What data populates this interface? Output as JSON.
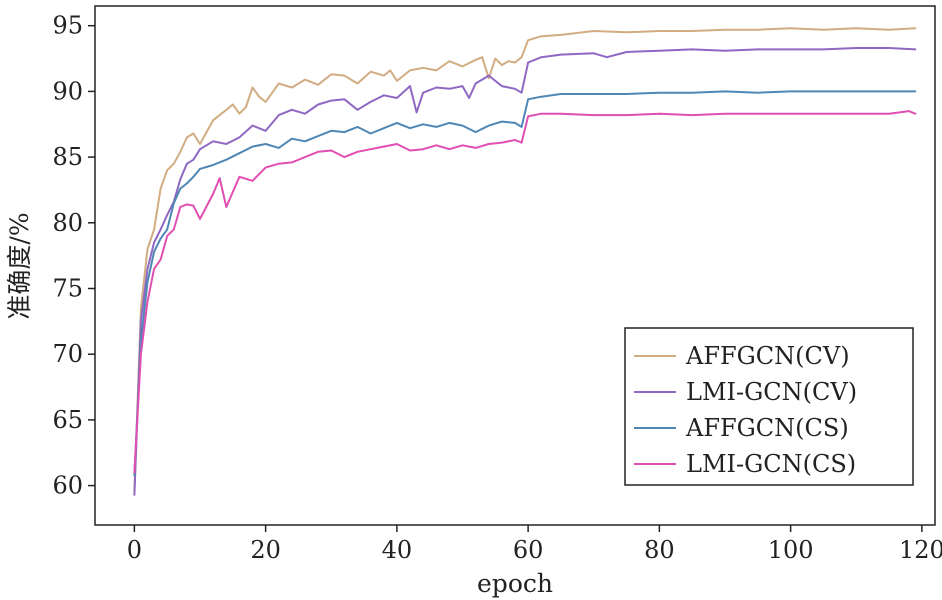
{
  "chart_data": {
    "type": "line",
    "xlabel": "epoch",
    "ylabel": "准确度/%",
    "xlim": [
      -6,
      122
    ],
    "ylim": [
      57,
      96.5
    ],
    "xticks": [
      0,
      20,
      40,
      60,
      80,
      100,
      120
    ],
    "yticks": [
      60,
      65,
      70,
      75,
      80,
      85,
      90,
      95
    ],
    "legend_position": "lower-right",
    "grid": false,
    "series": [
      {
        "name": "AFFGCN(CV)",
        "color": "#d2ac82",
        "x": [
          0,
          1,
          2,
          3,
          4,
          5,
          6,
          7,
          8,
          9,
          10,
          12,
          14,
          15,
          16,
          17,
          18,
          19,
          20,
          22,
          24,
          26,
          28,
          30,
          32,
          34,
          36,
          38,
          39,
          40,
          42,
          44,
          46,
          48,
          50,
          52,
          53,
          54,
          55,
          56,
          57,
          58,
          59,
          60,
          62,
          65,
          70,
          75,
          80,
          85,
          90,
          95,
          100,
          105,
          110,
          115,
          119
        ],
        "values": [
          59.5,
          73.5,
          78.0,
          79.5,
          82.6,
          84.0,
          84.5,
          85.4,
          86.5,
          86.8,
          86.0,
          87.8,
          88.6,
          89.0,
          88.3,
          88.8,
          90.3,
          89.6,
          89.2,
          90.6,
          90.3,
          90.9,
          90.5,
          91.3,
          91.2,
          90.6,
          91.5,
          91.2,
          91.6,
          90.8,
          91.6,
          91.8,
          91.6,
          92.3,
          91.9,
          92.4,
          92.6,
          91.0,
          92.5,
          92.0,
          92.3,
          92.2,
          92.6,
          93.9,
          94.2,
          94.3,
          94.6,
          94.5,
          94.6,
          94.6,
          94.7,
          94.7,
          94.8,
          94.7,
          94.8,
          94.7,
          94.8
        ]
      },
      {
        "name": "LMI-GCN(CV)",
        "color": "#8e68c2",
        "x": [
          0,
          1,
          2,
          3,
          4,
          5,
          6,
          7,
          8,
          9,
          10,
          12,
          14,
          16,
          18,
          20,
          22,
          24,
          26,
          28,
          30,
          32,
          34,
          36,
          38,
          40,
          42,
          43,
          44,
          46,
          48,
          50,
          51,
          52,
          54,
          56,
          58,
          59,
          60,
          62,
          65,
          70,
          72,
          75,
          80,
          85,
          90,
          95,
          100,
          105,
          110,
          115,
          119
        ],
        "values": [
          59.3,
          72.5,
          76.5,
          78.5,
          79.5,
          80.6,
          81.6,
          83.3,
          84.5,
          84.8,
          85.6,
          86.2,
          86.0,
          86.5,
          87.4,
          87.0,
          88.2,
          88.6,
          88.3,
          89.0,
          89.3,
          89.4,
          88.6,
          89.2,
          89.7,
          89.5,
          90.4,
          88.4,
          89.9,
          90.3,
          90.2,
          90.4,
          89.5,
          90.6,
          91.2,
          90.4,
          90.2,
          89.9,
          92.2,
          92.6,
          92.8,
          92.9,
          92.6,
          93.0,
          93.1,
          93.2,
          93.1,
          93.2,
          93.2,
          93.2,
          93.3,
          93.3,
          93.2
        ]
      },
      {
        "name": "AFFGCN(CS)",
        "color": "#4e86b4",
        "x": [
          0,
          1,
          2,
          3,
          4,
          5,
          6,
          7,
          8,
          9,
          10,
          12,
          14,
          16,
          18,
          20,
          22,
          24,
          26,
          28,
          30,
          32,
          34,
          36,
          38,
          40,
          42,
          44,
          46,
          48,
          50,
          52,
          54,
          56,
          58,
          59,
          60,
          62,
          65,
          70,
          75,
          80,
          85,
          90,
          95,
          100,
          105,
          110,
          115,
          119
        ],
        "values": [
          60.8,
          71.0,
          75.5,
          77.8,
          78.8,
          79.5,
          81.5,
          82.6,
          83.0,
          83.5,
          84.1,
          84.4,
          84.8,
          85.3,
          85.8,
          86.0,
          85.7,
          86.4,
          86.2,
          86.6,
          87.0,
          86.9,
          87.3,
          86.8,
          87.2,
          87.6,
          87.2,
          87.5,
          87.3,
          87.6,
          87.4,
          86.9,
          87.4,
          87.7,
          87.6,
          87.3,
          89.4,
          89.6,
          89.8,
          89.8,
          89.8,
          89.9,
          89.9,
          90.0,
          89.9,
          90.0,
          90.0,
          90.0,
          90.0,
          90.0
        ]
      },
      {
        "name": "LMI-GCN(CS)",
        "color": "#e04fb1",
        "x": [
          0,
          1,
          2,
          3,
          4,
          5,
          6,
          7,
          8,
          9,
          10,
          12,
          13,
          14,
          16,
          18,
          20,
          22,
          24,
          26,
          28,
          30,
          32,
          34,
          36,
          38,
          40,
          42,
          44,
          46,
          48,
          50,
          52,
          54,
          56,
          58,
          59,
          60,
          62,
          65,
          70,
          75,
          80,
          85,
          90,
          95,
          100,
          105,
          110,
          115,
          118,
          119
        ],
        "values": [
          61.0,
          70.0,
          74.0,
          76.5,
          77.2,
          79.0,
          79.5,
          81.2,
          81.4,
          81.3,
          80.3,
          82.2,
          83.4,
          81.2,
          83.5,
          83.2,
          84.2,
          84.5,
          84.6,
          85.0,
          85.4,
          85.5,
          85.0,
          85.4,
          85.6,
          85.8,
          86.0,
          85.5,
          85.6,
          85.9,
          85.6,
          85.9,
          85.7,
          86.0,
          86.1,
          86.3,
          86.1,
          88.1,
          88.3,
          88.3,
          88.2,
          88.2,
          88.3,
          88.2,
          88.3,
          88.3,
          88.3,
          88.3,
          88.3,
          88.3,
          88.5,
          88.3
        ]
      }
    ]
  }
}
